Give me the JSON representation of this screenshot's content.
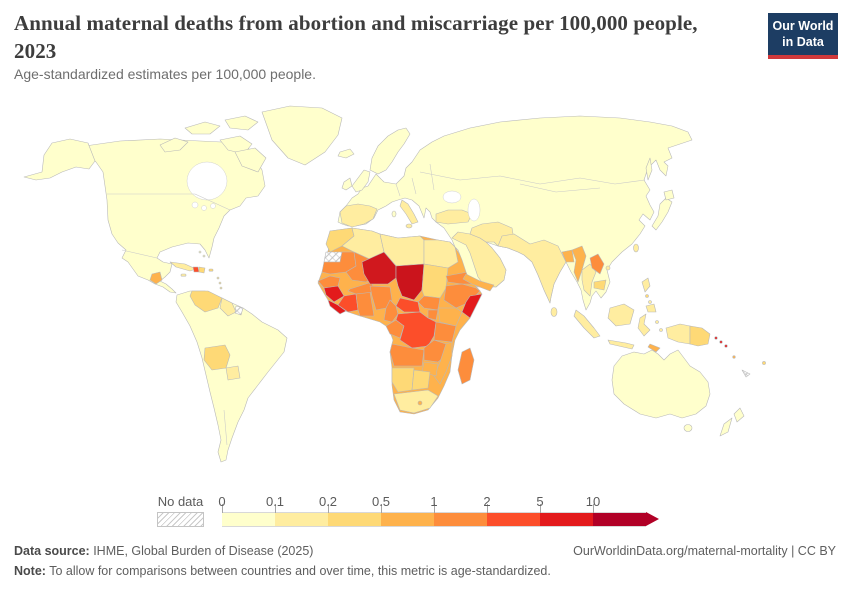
{
  "header": {
    "title": "Annual maternal deaths from abortion and miscarriage per 100,000 people, 2023",
    "subtitle": "Age-standardized estimates per 100,000 people.",
    "logo": {
      "line1": "Our World",
      "line2": "in Data",
      "bg": "#1d3d63",
      "accent": "#d0393b"
    }
  },
  "legend": {
    "no_data_label": "No data",
    "tick_labels": [
      "0",
      "0.1",
      "0.2",
      "0.5",
      "1",
      "2",
      "5",
      "10"
    ],
    "bin_colors": [
      "#ffffcc",
      "#ffeda0",
      "#fed976",
      "#feb24c",
      "#fd8d3c",
      "#fc4e2a",
      "#e31a1c",
      "#b10026"
    ]
  },
  "footer": {
    "source_label": "Data source:",
    "source_value": " IHME, Global Burden of Disease (2025)",
    "rights": "OurWorldinData.org/maternal-mortality | CC BY",
    "note_label": "Note:",
    "note_value": " To allow for comparisons between countries and over time, this metric is age-standardized."
  },
  "chart_data": {
    "type": "choropleth",
    "title": "Annual maternal deaths from abortion and miscarriage per 100,000 people",
    "year": 2023,
    "unit": "deaths per 100,000 people (age-standardized)",
    "scale_type": "log-binned",
    "bin_edges": [
      0,
      0.1,
      0.2,
      0.5,
      1,
      2,
      5,
      10
    ],
    "bin_colors": [
      "#ffffcc",
      "#ffeda0",
      "#fed976",
      "#feb24c",
      "#fd8d3c",
      "#fc4e2a",
      "#e31a1c",
      "#b10026"
    ],
    "no_data_style": "hatched",
    "regions": {
      "north-america": 0,
      "alaska": 0,
      "arctic-islands": 0,
      "greenland": 0,
      "cuba": 1,
      "haiti": 5,
      "dominican-republic": 2,
      "jamaica": 1,
      "puerto-rico": 2,
      "lesser-antilles": 1,
      "bahamas": 0,
      "guatemala": 3,
      "south-america": 0,
      "venezuela": 2,
      "guyana-suriname": 1,
      "french-guiana": "no-data",
      "bolivia": 2,
      "paraguay": 1,
      "africa-base": 3,
      "morocco": 2,
      "western-sahara": "no-data",
      "algeria": 1,
      "libya": 1,
      "egypt": 1,
      "mauritania": 4,
      "mali": 4,
      "senegal": 4,
      "guinea": 6,
      "sierra-leone-liberia": 6,
      "cote-divoire": 5,
      "ghana-togo-benin": 4,
      "burkina-faso": 4,
      "niger": {
        "bin": 7,
        "fill": "#d0181e"
      },
      "chad": {
        "bin": 7,
        "fill": "#cb141c"
      },
      "nigeria": 4,
      "cameroon": 4,
      "sudan": 2,
      "eritrea": 4,
      "ethiopia": 4,
      "somalia": 6,
      "south-sudan": 4,
      "central-african-republic": 5,
      "uganda": 4,
      "kenya": 3,
      "gabon-congo": 4,
      "drc": 5,
      "tanzania": 4,
      "angola": 4,
      "zambia": 4,
      "malawi-mozambique": 3,
      "zimbabwe": 3,
      "namibia": 2,
      "botswana": 2,
      "south-africa": 1,
      "lesotho": 3,
      "madagascar": 4,
      "eurasia": 0,
      "scandinavia": 0,
      "united-kingdom": 0,
      "ireland": 0,
      "iceland": 0,
      "italy": 1,
      "spain": 1,
      "turkey": 1,
      "middle-east": 1,
      "iran": 1,
      "yemen": 3,
      "south-asia": 1,
      "sri-lanka": 1,
      "bangladesh": 3,
      "myanmar": 3,
      "thailand": 1,
      "laos": 4,
      "cambodia": 2,
      "japan": 0,
      "sakhalin": 0,
      "taiwan": 1,
      "hainan": 1,
      "philippines": 1,
      "philippines-visayas": 2,
      "borneo": 1,
      "sumatra": 1,
      "java": 1,
      "sulawesi": 1,
      "moluccas": 1,
      "timor-leste": 3,
      "new-guinea-west": 1,
      "papua-new-guinea": 2,
      "solomon-islands": 6,
      "vanuatu": 3,
      "fiji": 2,
      "new-caledonia": "no-data",
      "australia": 0,
      "tasmania": 0,
      "new-zealand": 0
    }
  }
}
